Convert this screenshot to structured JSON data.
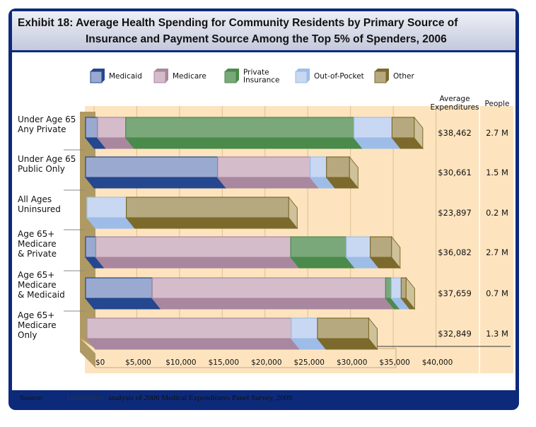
{
  "title_line1": "Exhibit 18: Average Health Spending for Community Residents by Primary Source of",
  "title_line2": "Insurance and Payment Source Among the Top 5% of Spenders, 2006",
  "source_label": "Source:",
  "source_logo": "LewinGroup",
  "source_text": "analysis of 2006 Medical Expenditures Panel Survey, 2009",
  "chart_data": {
    "type": "bar",
    "orientation": "horizontal-stacked-3d",
    "title": "Exhibit 18: Average Health Spending for Community Residents by Primary Source of Insurance and Payment Source Among the Top 5% of Spenders, 2006",
    "categories": [
      [
        "Under Age 65",
        "Any Private"
      ],
      [
        "Under Age 65",
        "Public Only"
      ],
      [
        "All Ages",
        "Uninsured"
      ],
      [
        "Age 65+",
        "Medicare",
        "& Private"
      ],
      [
        "Age 65+",
        "Medicare",
        "& Medicaid"
      ],
      [
        "Age 65+",
        "Medicare",
        "Only"
      ]
    ],
    "series": [
      {
        "name": "Medicaid",
        "color": "#9aa9cf",
        "dark": "#24478f",
        "values": [
          1400,
          15450,
          0,
          1200,
          7800,
          0
        ]
      },
      {
        "name": "Medicare",
        "color": "#d4bccb",
        "dark": "#a8879f",
        "values": [
          3300,
          10830,
          0,
          22800,
          27300,
          23900
        ]
      },
      {
        "name": "Private Insurance",
        "color": "#7aa87a",
        "dark": "#4a8a4a",
        "values": [
          26700,
          0,
          0,
          6500,
          660,
          0
        ]
      },
      {
        "name": "Out-of-Pocket",
        "color": "#c8d8f2",
        "dark": "#9dbde8",
        "values": [
          4450,
          1900,
          4600,
          2800,
          1160,
          3060
        ]
      },
      {
        "name": "Other",
        "color": "#b7a97f",
        "dark": "#7c6a2c",
        "values": [
          2600,
          2700,
          19000,
          2500,
          580,
          6000
        ]
      }
    ],
    "legend_lines": [
      [
        "Medicaid"
      ],
      [
        "Medicare"
      ],
      [
        "Private",
        "Insurance"
      ],
      [
        "Out-of-Pocket"
      ],
      [
        "Other"
      ]
    ],
    "xlim": [
      0,
      40000
    ],
    "xticks": [
      "$0",
      "$5,000",
      "$10,000",
      "$15,000",
      "$20,000",
      "$25,000",
      "$30,000",
      "$35,000",
      "$40,000"
    ],
    "grid": true,
    "legend_position": "top",
    "table_headers": {
      "expenditures": [
        "Average",
        "Expenditures"
      ],
      "people": "People"
    },
    "average_expenditures": [
      "$38,462",
      "$30,661",
      "$23,897",
      "$36,082",
      "$37,659",
      "$32,849"
    ],
    "people": [
      "2.7 M",
      "1.5 M",
      "0.2 M",
      "2.7 M",
      "0.7 M",
      "1.3 M"
    ]
  }
}
